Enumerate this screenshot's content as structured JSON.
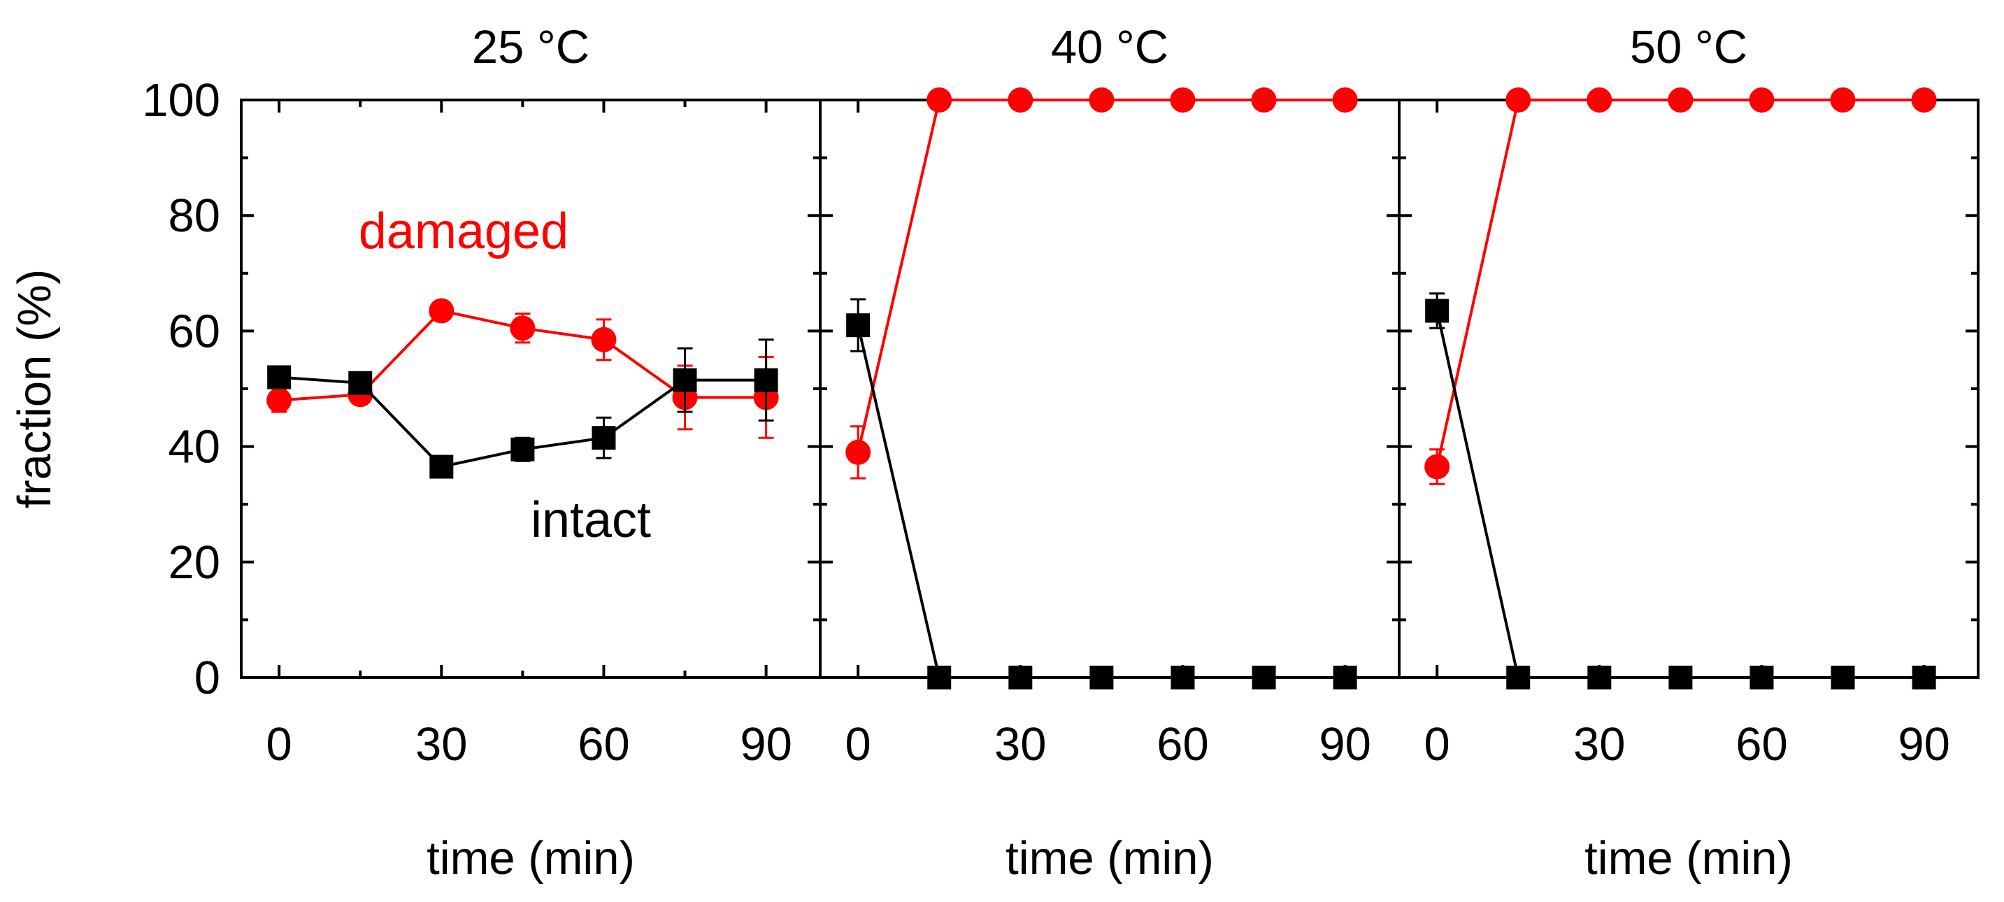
{
  "chart_data": {
    "type": "line",
    "ylabel": "fraction (%)",
    "ylim": [
      0,
      100
    ],
    "yticks": [
      0,
      20,
      40,
      60,
      80,
      100
    ],
    "xlim": [
      -7,
      100
    ],
    "xticks": [
      0,
      30,
      60,
      90
    ],
    "colors": {
      "damaged": "#ff0000",
      "intact": "#000000",
      "axis": "#000000"
    },
    "annotations": [
      {
        "panel": 0,
        "text": "damaged",
        "color": "#ff0000"
      },
      {
        "panel": 0,
        "text": "intact",
        "color": "#000000"
      }
    ],
    "panels": [
      {
        "title": "25 °C",
        "xlabel": "time (min)",
        "x": [
          0,
          15,
          30,
          45,
          60,
          75,
          90
        ],
        "series": [
          {
            "name": "intact",
            "marker": "square",
            "color": "#000000",
            "values": [
              52,
              51,
              36.5,
              39.5,
              41.5,
              51.5,
              51.5
            ],
            "errors": [
              1.5,
              1.0,
              1.5,
              2.0,
              3.5,
              5.5,
              7.0
            ]
          },
          {
            "name": "damaged",
            "marker": "circle",
            "color": "#ff0000",
            "values": [
              48,
              49,
              63.5,
              60.5,
              58.5,
              48.5,
              48.5
            ],
            "errors": [
              2.0,
              1.0,
              1.5,
              2.5,
              3.5,
              5.5,
              7.0
            ]
          }
        ]
      },
      {
        "title": "40 °C",
        "xlabel": "time (min)",
        "x": [
          0,
          15,
          30,
          45,
          60,
          75,
          90
        ],
        "series": [
          {
            "name": "intact",
            "marker": "square",
            "color": "#000000",
            "values": [
              61,
              0,
              0,
              0,
              0,
              0,
              0
            ],
            "errors": [
              4.5,
              0,
              0,
              0,
              0,
              0,
              0
            ]
          },
          {
            "name": "damaged",
            "marker": "circle",
            "color": "#ff0000",
            "values": [
              39,
              100,
              100,
              100,
              100,
              100,
              100
            ],
            "errors": [
              4.5,
              0,
              0,
              0,
              0,
              0,
              0
            ]
          }
        ]
      },
      {
        "title": "50 °C",
        "xlabel": "time (min)",
        "x": [
          0,
          15,
          30,
          45,
          60,
          75,
          90
        ],
        "series": [
          {
            "name": "intact",
            "marker": "square",
            "color": "#000000",
            "values": [
              63.5,
              0,
              0,
              0,
              0,
              0,
              0
            ],
            "errors": [
              3.0,
              0,
              0,
              0,
              0,
              0,
              0
            ]
          },
          {
            "name": "damaged",
            "marker": "circle",
            "color": "#ff0000",
            "values": [
              36.5,
              100,
              100,
              100,
              100,
              100,
              100
            ],
            "errors": [
              3.0,
              0,
              0,
              0,
              0,
              0,
              0
            ]
          }
        ]
      }
    ]
  }
}
